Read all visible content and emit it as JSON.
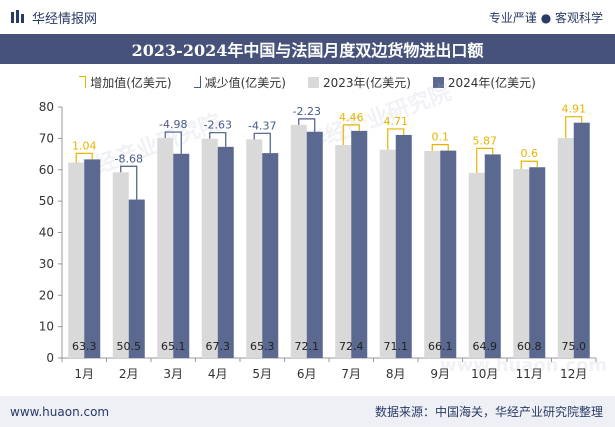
{
  "header": {
    "brand": "华经情报网",
    "tagline": "专业严谨 ● 客观科学"
  },
  "colors": {
    "accent": "#46527a",
    "bar2023": "#d9d9d9",
    "bar2024": "#5b6890",
    "increase": "#e8b400",
    "decrease": "#4a5a86"
  },
  "chart_data": {
    "type": "bar",
    "title": "2023-2024年中国与法国月度双边货物进出口额",
    "legend": {
      "increase": "增加值(亿美元)",
      "decrease": "减少值(亿美元)",
      "y2023": "2023年(亿美元)",
      "y2024": "2024年(亿美元)"
    },
    "categories": [
      "1月",
      "2月",
      "3月",
      "4月",
      "5月",
      "6月",
      "7月",
      "8月",
      "9月",
      "10月",
      "11月",
      "12月"
    ],
    "series": [
      {
        "name": "2023年(亿美元)",
        "values": [
          62.3,
          59.2,
          70.1,
          69.9,
          69.7,
          74.3,
          67.9,
          66.4,
          66.0,
          59.0,
          60.2,
          70.1
        ]
      },
      {
        "name": "2024年(亿美元)",
        "values": [
          63.3,
          50.5,
          65.1,
          67.3,
          65.3,
          72.1,
          72.4,
          71.1,
          66.1,
          64.9,
          60.8,
          75.0
        ]
      }
    ],
    "value_labels": [
      "63.3",
      "50.5",
      "65.1",
      "67.3",
      "65.3",
      "72.1",
      "72.4",
      "71.1",
      "66.1",
      "64.9",
      "60.8",
      "75.0"
    ],
    "changes": [
      1.04,
      -8.68,
      -4.98,
      -2.63,
      -4.37,
      -2.23,
      4.46,
      4.71,
      0.1,
      5.87,
      0.6,
      4.91
    ],
    "change_labels": [
      "1.04",
      "-8.68",
      "-4.98",
      "-2.63",
      "-4.37",
      "-2.23",
      "4.46",
      "4.71",
      "0.1",
      "5.87",
      "0.6",
      "4.91"
    ],
    "ylim": [
      0,
      80
    ],
    "yticks": [
      0,
      10,
      20,
      30,
      40,
      50,
      60,
      70,
      80
    ],
    "xlabel": "",
    "ylabel": ""
  },
  "footer": {
    "website": "www.huaon.com",
    "source": "数据来源：中国海关，华经产业研究院整理"
  },
  "watermark": {
    "text": "华经产业研究院",
    "url": "www.huaon.com"
  }
}
